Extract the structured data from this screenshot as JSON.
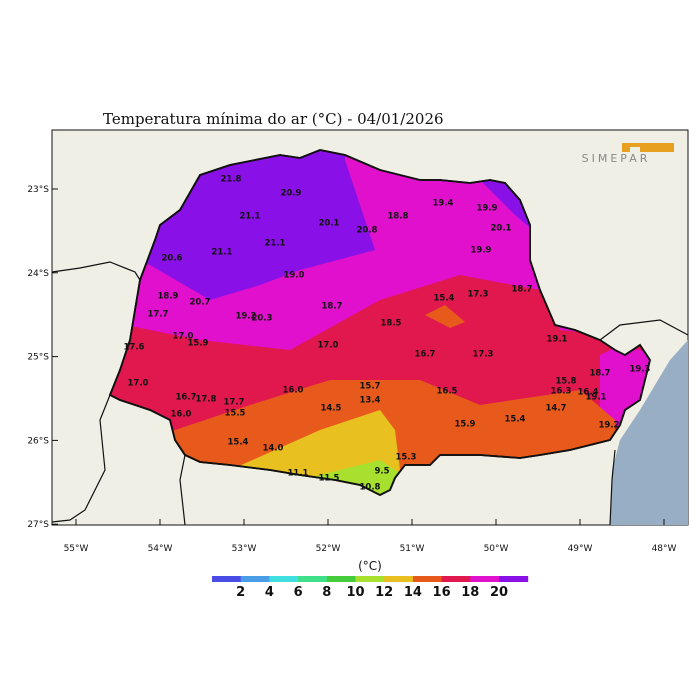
{
  "header": {
    "title": "Temperatura mínima do ar (°C) - 04/01/2026",
    "logo": "SIMEPAR"
  },
  "axes": {
    "lat": [
      "23°S",
      "24°S",
      "25°S",
      "26°S",
      "27°S"
    ],
    "lon": [
      "55°W",
      "54°W",
      "53°W",
      "52°W",
      "51°W",
      "50°W",
      "49°W",
      "48°W"
    ]
  },
  "stations": [
    "21.8",
    "20.9",
    "21.1",
    "20.1",
    "20.8",
    "18.8",
    "19.4",
    "19.9",
    "20.1",
    "21.1",
    "21.1",
    "20.6",
    "19.9",
    "19.0",
    "18.7",
    "18.9",
    "20.7",
    "15.4",
    "17.3",
    "18.7",
    "19.2",
    "20.3",
    "17.7",
    "18.5",
    "17.0",
    "15.9",
    "19.1",
    "17.6",
    "17.0",
    "16.7",
    "17.3",
    "18.7",
    "19.3",
    "17.0",
    "15.7",
    "15.8",
    "16.0",
    "16.5",
    "16.3",
    "16.4",
    "19.1",
    "16.7",
    "17.8",
    "17.7",
    "13.4",
    "14.5",
    "15.5",
    "16.0",
    "14.7",
    "15.9",
    "15.4",
    "19.2",
    "15.4",
    "14.0",
    "15.3",
    "9.5",
    "11.1",
    "11.5",
    "10.8"
  ],
  "legend": {
    "unit": "(°C)",
    "labels": [
      2,
      4,
      6,
      8,
      10,
      12,
      14,
      16,
      18,
      20
    ],
    "colors": [
      "#4a4ce6",
      "#4a9ee6",
      "#40e0e0",
      "#40e08a",
      "#44cc3c",
      "#a8e030",
      "#e8c020",
      "#e85a1c",
      "#e0184e",
      "#e010cc",
      "#8a10e8"
    ]
  }
}
